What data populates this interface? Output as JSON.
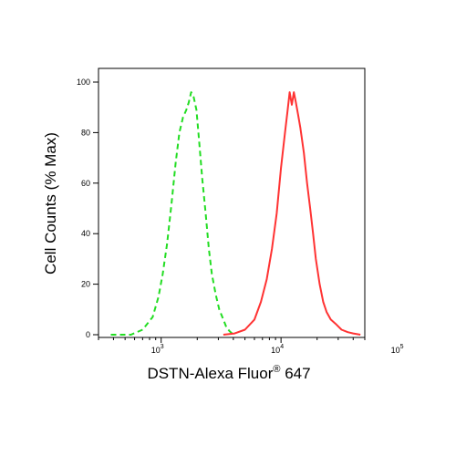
{
  "chart_data": {
    "type": "line",
    "title": "",
    "xlabel": "DSTN-Alexa Fluor",
    "xlabel_superscript": "®",
    "xlabel_suffix": " 647",
    "ylabel": "Cell Counts (% Max)",
    "x_scale": "log",
    "xlim": [
      300,
      50000
    ],
    "ylim": [
      0,
      100
    ],
    "y_ticks": [
      0,
      20,
      40,
      60,
      80,
      100
    ],
    "y_tick_labels": [
      "0",
      "20",
      "40",
      "60",
      "80",
      "100"
    ],
    "x_ticks": [
      1000,
      10000,
      100000
    ],
    "x_tick_labels": [
      {
        "base": "10",
        "exp": "3"
      },
      {
        "base": "10",
        "exp": "4"
      },
      {
        "base": "10",
        "exp": "5"
      }
    ],
    "grid": false,
    "series": [
      {
        "color": "#22dd22",
        "style": "dashed",
        "x": [
          380,
          560,
          700,
          850,
          950,
          1030,
          1120,
          1220,
          1320,
          1420,
          1520,
          1620,
          1700,
          1780,
          1870,
          1970,
          2080,
          2200,
          2350,
          2500,
          2650,
          2850,
          3050,
          3300,
          3500,
          3700,
          3900,
          4100
        ],
        "y": [
          0,
          0,
          2,
          7,
          15,
          24,
          36,
          52,
          68,
          80,
          86,
          89,
          92,
          96,
          94,
          89,
          76,
          62,
          48,
          34,
          24,
          16,
          10,
          6,
          3,
          1.5,
          0.5,
          0
        ]
      },
      {
        "color": "#ff3333",
        "style": "solid",
        "x": [
          3300,
          4100,
          5000,
          6000,
          6800,
          7600,
          8400,
          9200,
          10000,
          10800,
          11300,
          11800,
          12300,
          12800,
          13300,
          13900,
          14500,
          15500,
          16500,
          17500,
          18500,
          19500,
          21000,
          22500,
          24000,
          26000,
          29000,
          32000,
          36000,
          40000,
          46000
        ],
        "y": [
          0,
          0.5,
          2,
          6,
          13,
          22,
          34,
          48,
          66,
          80,
          88,
          96,
          91,
          96,
          92,
          87,
          82,
          72,
          60,
          50,
          40,
          30,
          20,
          13,
          9,
          6,
          4,
          2,
          1,
          0.5,
          0
        ]
      }
    ]
  }
}
